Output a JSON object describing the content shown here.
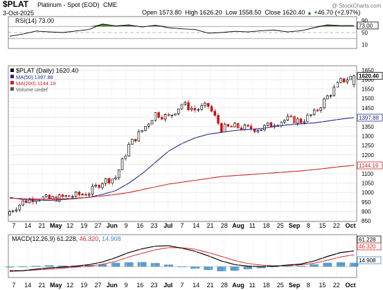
{
  "header": {
    "symbol": "$PLAT",
    "name": "Platinum - Spot (EOD)",
    "exchange": "CME",
    "date": "3-Oct-2025",
    "watermark": "@ StockCharts.com",
    "open_label": "Open",
    "open": "1573.80",
    "high_label": "High",
    "high": "1626.20",
    "low_label": "Low",
    "low": "1558.50",
    "close_label": "Close",
    "close": "1620.40",
    "change": "+46.70 (+2.97%)",
    "change_arrow": "▲"
  },
  "rsi_panel": {
    "label": "RSI(14) 73.00",
    "ticks": [
      90,
      70,
      50,
      10
    ],
    "value_tag": "73.00"
  },
  "price_panel": {
    "legend": [
      {
        "text": "$PLAT (Daily) 1620.40",
        "color": "#000000"
      },
      {
        "text": "MA(50) 1397.88",
        "color": "#1f2a8a"
      },
      {
        "text": "MA(200) 1144.19",
        "color": "#cc2222"
      },
      {
        "text": "Volume undef",
        "color": "#555555"
      }
    ],
    "ticks": [
      1650,
      1600,
      1550,
      1500,
      1450,
      1400,
      1350,
      1300,
      1250,
      1200,
      1150,
      1100,
      1050,
      1000,
      950,
      900,
      850
    ],
    "tags": [
      {
        "text": "1620.40",
        "value": 1620.4,
        "style": "dark"
      },
      {
        "text": "1397.88",
        "value": 1397.88,
        "style": "blue"
      },
      {
        "text": "1144.19",
        "value": 1144.19,
        "style": "red"
      }
    ]
  },
  "macd_panel": {
    "label": "MACD(12,26,9)",
    "macd": "61.228",
    "signal": "46.320",
    "hist": "14.908",
    "tags": [
      {
        "text": "61.228",
        "style": "dark"
      },
      {
        "text": "46.320",
        "style": "red"
      },
      {
        "text": "14.908",
        "style": "blue"
      }
    ]
  },
  "x_axis": {
    "labels": [
      {
        "text": "7",
        "bold": false
      },
      {
        "text": "14",
        "bold": false
      },
      {
        "text": "21",
        "bold": false
      },
      {
        "text": "May",
        "bold": true
      },
      {
        "text": "12",
        "bold": false
      },
      {
        "text": "19",
        "bold": false
      },
      {
        "text": "27",
        "bold": false
      },
      {
        "text": "Jun",
        "bold": true
      },
      {
        "text": "9",
        "bold": false
      },
      {
        "text": "16",
        "bold": false
      },
      {
        "text": "23",
        "bold": false
      },
      {
        "text": "Jul",
        "bold": true
      },
      {
        "text": "7",
        "bold": false
      },
      {
        "text": "14",
        "bold": false
      },
      {
        "text": "21",
        "bold": false
      },
      {
        "text": "28",
        "bold": false
      },
      {
        "text": "Aug",
        "bold": true
      },
      {
        "text": "11",
        "bold": false
      },
      {
        "text": "18",
        "bold": false
      },
      {
        "text": "25",
        "bold": false
      },
      {
        "text": "Sep",
        "bold": true
      },
      {
        "text": "8",
        "bold": false
      },
      {
        "text": "15",
        "bold": false
      },
      {
        "text": "22",
        "bold": false
      },
      {
        "text": "Oct",
        "bold": true
      }
    ]
  },
  "colors": {
    "up": "#000000",
    "down": "#cc1111",
    "ma50": "#1f2a8a",
    "ma200": "#cc2222",
    "hist": "#3d8bc4",
    "signal": "#d62828",
    "rsi_fill": "#4c7a3c",
    "grid": "#dddddd"
  },
  "chart_data": {
    "type": "candlestick",
    "dates": [
      "Apr 7",
      "Apr 14",
      "Apr 21",
      "Apr 28",
      "May 5",
      "May 12",
      "May 19",
      "May 27",
      "Jun 2",
      "Jun 9",
      "Jun 16",
      "Jun 23",
      "Jun 30",
      "Jul 7",
      "Jul 14",
      "Jul 21",
      "Jul 28",
      "Aug 4",
      "Aug 11",
      "Aug 18",
      "Aug 25",
      "Sep 1",
      "Sep 8",
      "Sep 15",
      "Sep 22",
      "Sep 29",
      "Oct 3"
    ],
    "close": [
      900,
      950,
      975,
      965,
      975,
      985,
      1000,
      1060,
      1080,
      1250,
      1330,
      1420,
      1400,
      1470,
      1440,
      1460,
      1340,
      1350,
      1340,
      1340,
      1370,
      1390,
      1380,
      1420,
      1510,
      1590,
      1620.4
    ],
    "ma50": [
      975,
      962,
      960,
      958,
      962,
      968,
      975,
      990,
      1010,
      1050,
      1100,
      1160,
      1220,
      1260,
      1290,
      1310,
      1320,
      1330,
      1335,
      1340,
      1350,
      1360,
      1365,
      1370,
      1380,
      1390,
      1397.88
    ],
    "ma200": [
      970,
      968,
      966,
      965,
      967,
      970,
      975,
      982,
      990,
      1000,
      1015,
      1030,
      1045,
      1055,
      1065,
      1075,
      1085,
      1090,
      1095,
      1100,
      1105,
      1110,
      1115,
      1122,
      1130,
      1138,
      1144.19
    ],
    "rsi": [
      38,
      45,
      55,
      52,
      50,
      55,
      60,
      78,
      72,
      75,
      68,
      74,
      66,
      62,
      60,
      48,
      50,
      54,
      52,
      56,
      58,
      52,
      56,
      66,
      75,
      73,
      73
    ],
    "macd": [
      -18,
      -16,
      -10,
      -5,
      -2,
      2,
      8,
      18,
      35,
      55,
      70,
      80,
      82,
      72,
      60,
      42,
      22,
      8,
      2,
      0,
      2,
      6,
      10,
      22,
      40,
      55,
      61.228
    ],
    "signal": [
      -15,
      -16,
      -13,
      -10,
      -6,
      -2,
      2,
      9,
      20,
      38,
      52,
      66,
      74,
      74,
      68,
      55,
      40,
      24,
      12,
      6,
      3,
      4,
      7,
      13,
      25,
      38,
      46.32
    ],
    "histogram": [
      -3,
      0,
      3,
      5,
      4,
      4,
      6,
      9,
      15,
      17,
      18,
      14,
      8,
      -2,
      -8,
      -13,
      -18,
      -16,
      -10,
      -6,
      -1,
      2,
      3,
      9,
      15,
      17,
      14.908
    ],
    "ylim_price": [
      850,
      1670
    ],
    "ylim_rsi": [
      0,
      100
    ],
    "ylim_macd": [
      -40,
      90
    ],
    "rsi_levels": [
      70,
      50,
      30
    ]
  }
}
